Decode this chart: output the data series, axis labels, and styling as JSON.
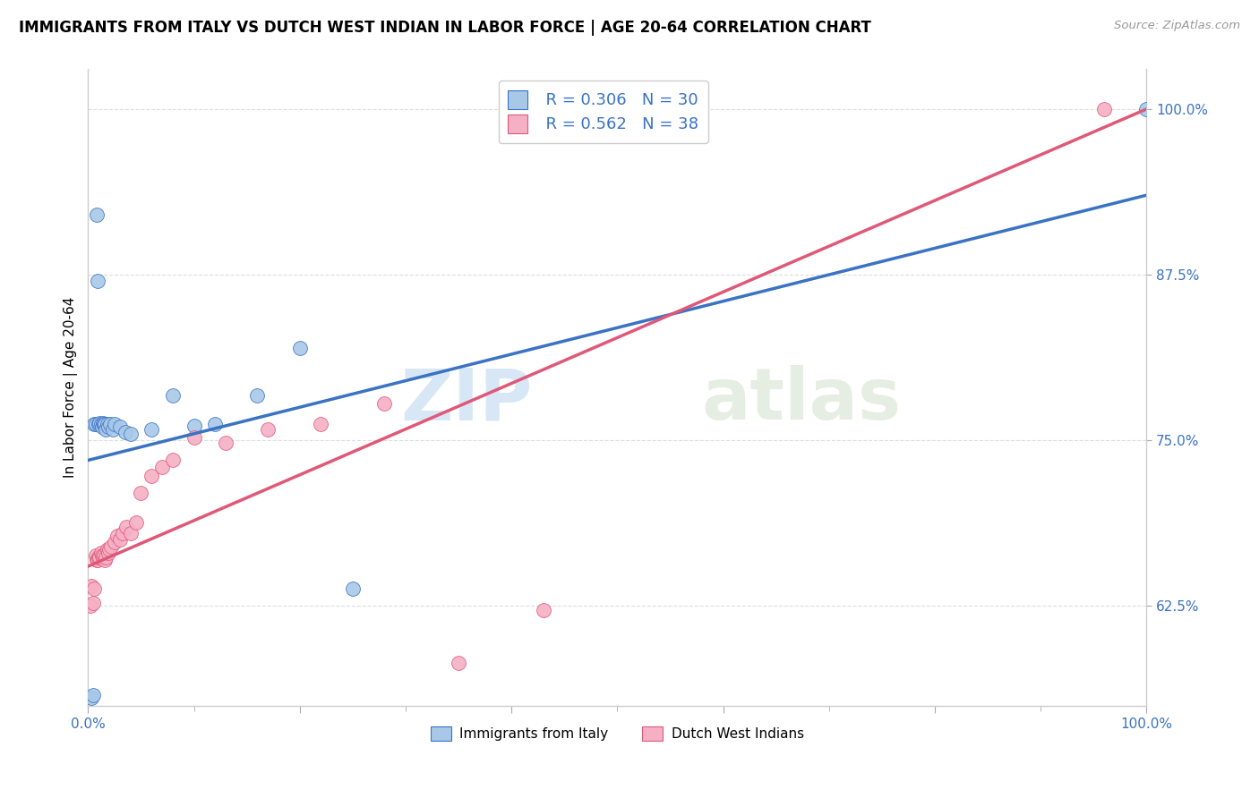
{
  "title": "IMMIGRANTS FROM ITALY VS DUTCH WEST INDIAN IN LABOR FORCE | AGE 20-64 CORRELATION CHART",
  "source": "Source: ZipAtlas.com",
  "ylabel": "In Labor Force | Age 20-64",
  "y_tick_labels": [
    "62.5%",
    "75.0%",
    "87.5%",
    "100.0%"
  ],
  "y_tick_values": [
    0.625,
    0.75,
    0.875,
    1.0
  ],
  "legend_italy_R": "R = 0.306",
  "legend_italy_N": "N = 30",
  "legend_dutch_R": "R = 0.562",
  "legend_dutch_N": "N = 38",
  "legend_label_italy": "Immigrants from Italy",
  "legend_label_dutch": "Dutch West Indians",
  "color_italy": "#a8c8e8",
  "color_italy_line": "#3a72c4",
  "color_dutch": "#f5b0c5",
  "color_dutch_line": "#e05878",
  "color_legend_text": "#3a72c4",
  "color_yaxis_text": "#3a72c4",
  "background_color": "#ffffff",
  "grid_color": "#dddddd",
  "watermark_zip": "ZIP",
  "watermark_atlas": "atlas",
  "italy_x": [
    0.003,
    0.005,
    0.006,
    0.007,
    0.008,
    0.009,
    0.01,
    0.011,
    0.012,
    0.013,
    0.014,
    0.015,
    0.016,
    0.017,
    0.018,
    0.019,
    0.021,
    0.023,
    0.025,
    0.03,
    0.035,
    0.04,
    0.06,
    0.08,
    0.1,
    0.12,
    0.16,
    0.2,
    0.25,
    1.0
  ],
  "italy_y": [
    0.556,
    0.558,
    0.762,
    0.762,
    0.92,
    0.87,
    0.762,
    0.763,
    0.762,
    0.76,
    0.763,
    0.762,
    0.762,
    0.758,
    0.762,
    0.76,
    0.762,
    0.758,
    0.762,
    0.76,
    0.756,
    0.755,
    0.758,
    0.784,
    0.761,
    0.762,
    0.784,
    0.82,
    0.638,
    1.0
  ],
  "dutch_x": [
    0.002,
    0.003,
    0.005,
    0.006,
    0.007,
    0.008,
    0.009,
    0.01,
    0.011,
    0.012,
    0.013,
    0.014,
    0.015,
    0.016,
    0.017,
    0.018,
    0.019,
    0.02,
    0.022,
    0.025,
    0.028,
    0.03,
    0.033,
    0.036,
    0.04,
    0.045,
    0.05,
    0.06,
    0.07,
    0.08,
    0.1,
    0.13,
    0.17,
    0.22,
    0.28,
    0.35,
    0.43,
    0.96
  ],
  "dutch_y": [
    0.625,
    0.64,
    0.627,
    0.638,
    0.663,
    0.66,
    0.66,
    0.662,
    0.662,
    0.665,
    0.663,
    0.662,
    0.663,
    0.66,
    0.662,
    0.668,
    0.665,
    0.668,
    0.67,
    0.673,
    0.678,
    0.675,
    0.68,
    0.685,
    0.68,
    0.688,
    0.71,
    0.723,
    0.73,
    0.735,
    0.752,
    0.748,
    0.758,
    0.762,
    0.778,
    0.582,
    0.622,
    1.0
  ],
  "xlim": [
    0.0,
    1.0
  ],
  "ylim": [
    0.55,
    1.03
  ],
  "italy_line_x0": 0.0,
  "italy_line_y0": 0.735,
  "italy_line_x1": 1.0,
  "italy_line_y1": 0.935,
  "dutch_line_x0": 0.0,
  "dutch_line_y0": 0.655,
  "dutch_line_x1": 1.0,
  "dutch_line_y1": 1.0
}
